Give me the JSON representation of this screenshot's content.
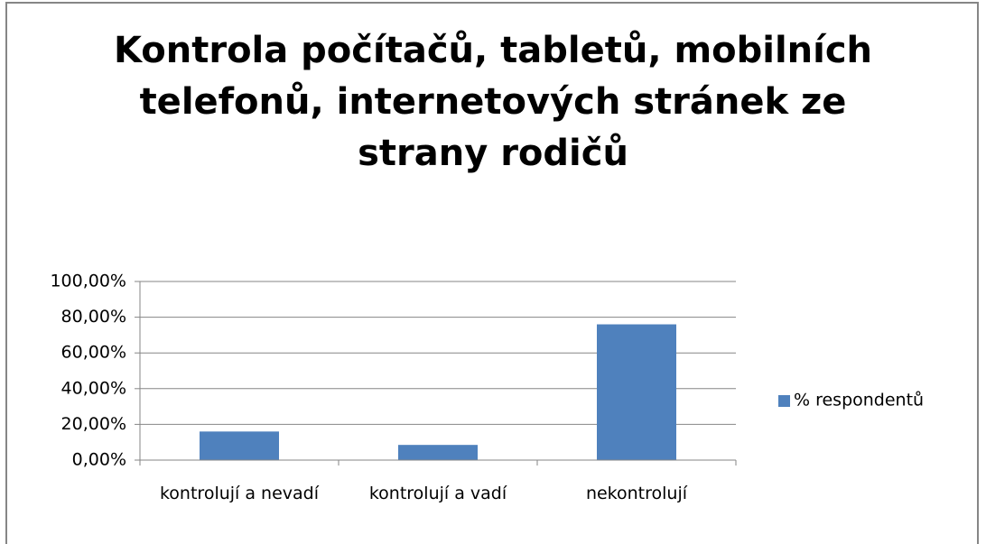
{
  "chart_data": {
    "type": "bar",
    "title": "Kontrola počítačů, tabletů, mobilních telefonů, internetových stránek ze strany rodičů",
    "categories": [
      "kontrolují a nevadí",
      "kontrolují a vadí",
      "nekontrolují"
    ],
    "series": [
      {
        "name": "% respondentů",
        "color": "#4f81bd",
        "values": [
          16,
          8.5,
          76
        ]
      }
    ],
    "ylim": [
      0,
      100
    ],
    "yticks": [
      {
        "value": 0,
        "label": "0,00%"
      },
      {
        "value": 20,
        "label": "20,00%"
      },
      {
        "value": 40,
        "label": "40,00%"
      },
      {
        "value": 60,
        "label": "60,00%"
      },
      {
        "value": 80,
        "label": "80,00%"
      },
      {
        "value": 100,
        "label": "100,00%"
      }
    ],
    "grid": true,
    "legend": "right"
  }
}
